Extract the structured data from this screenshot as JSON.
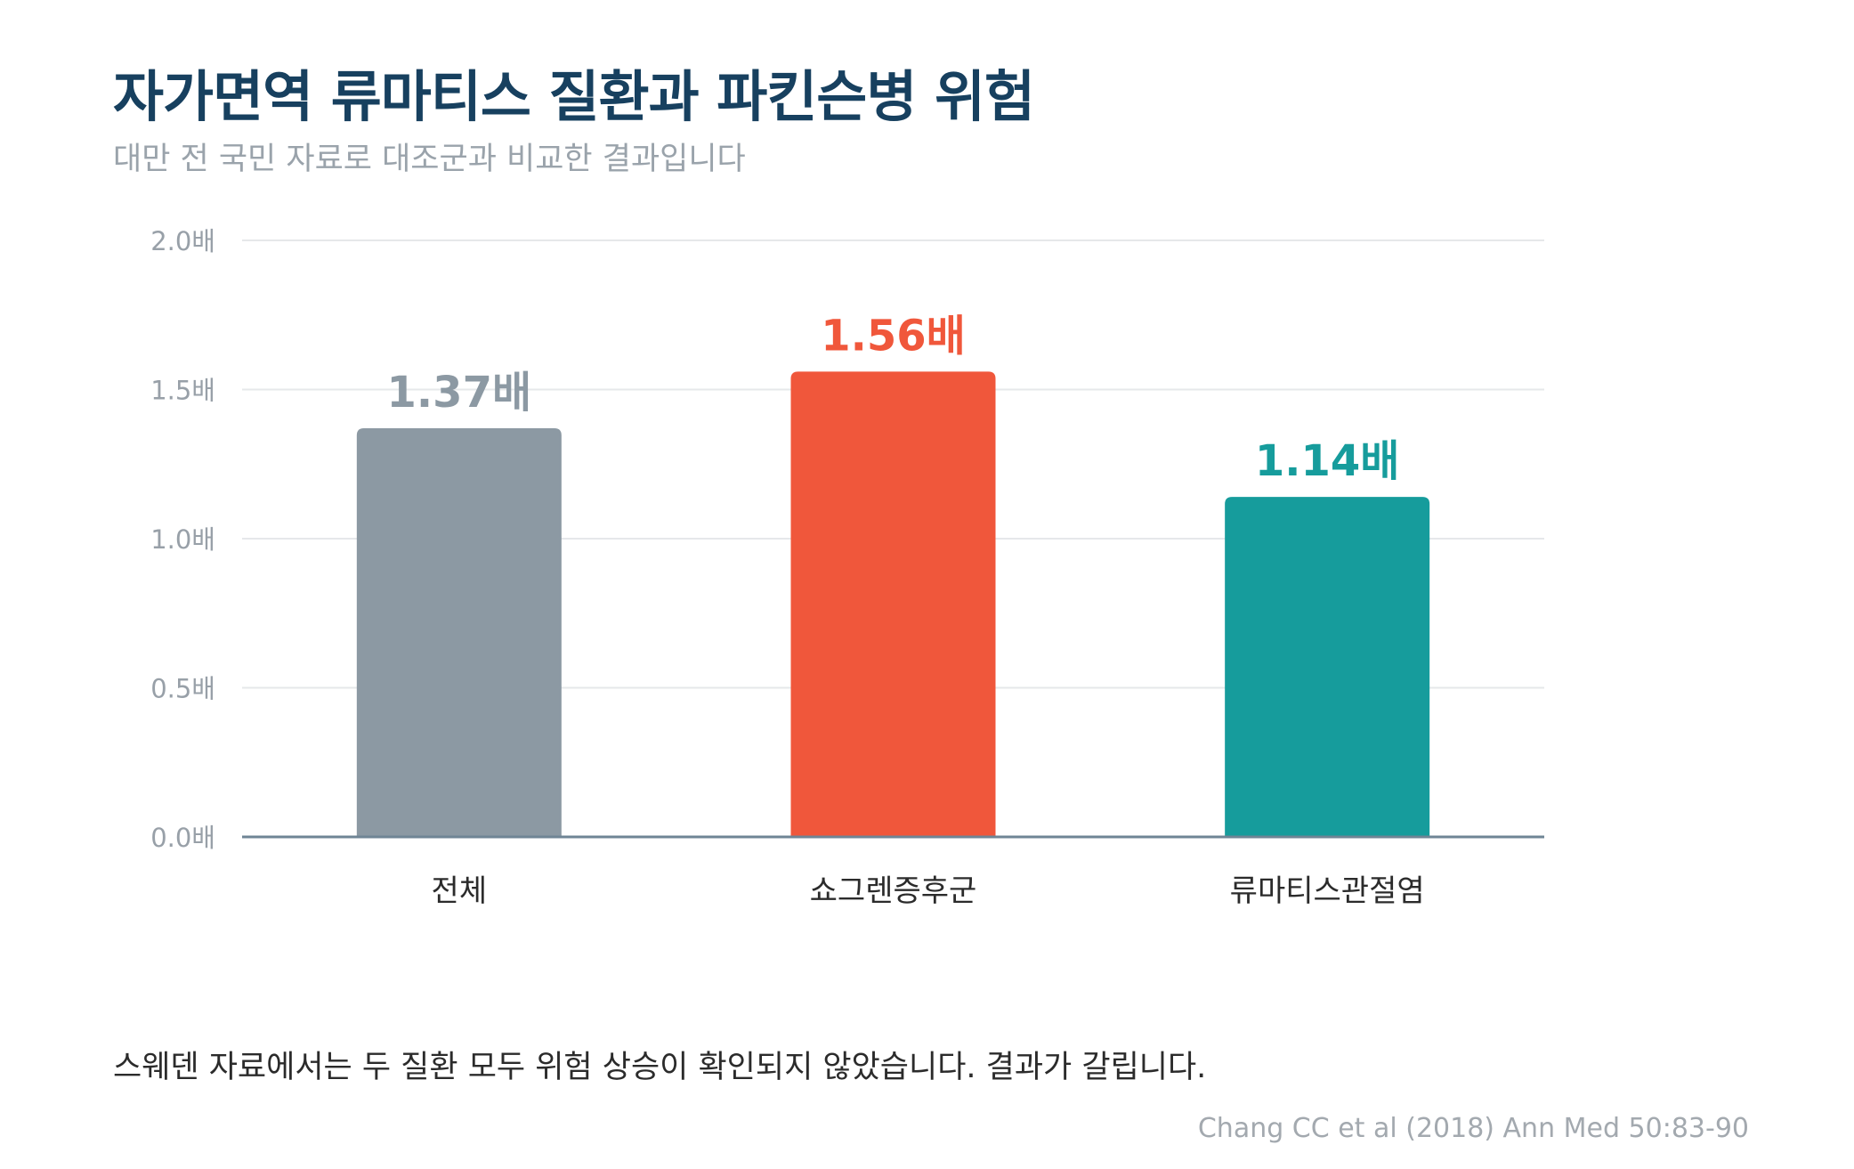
{
  "header": {
    "title": "자가면역 류마티스 질환과 파킨슨병 위험",
    "subtitle": "대만 전 국민 자료로 대조군과 비교한 결과입니다"
  },
  "chart_data": {
    "type": "bar",
    "categories": [
      "전체",
      "쇼그렌증후군",
      "류마티스관절염"
    ],
    "values": [
      1.37,
      1.56,
      1.14
    ],
    "value_labels": [
      "1.37배",
      "1.56배",
      "1.14배"
    ],
    "colors": [
      "#8c99a3",
      "#f0573b",
      "#169c9c"
    ],
    "ylim": [
      0,
      2.0
    ],
    "yticks": [
      0,
      0.5,
      1.0,
      1.5,
      2.0
    ],
    "ytick_labels": [
      "0.0배",
      "0.5배",
      "1.0배",
      "1.5배",
      "2.0배"
    ],
    "grid": true,
    "legend": "none"
  },
  "footer": {
    "note": "스웨덴 자료에서는 두 질환 모두 위험 상승이 확인되지 않았습니다. 결과가 갈립니다.",
    "source": "Chang CC et al (2018) Ann Med 50:83-90"
  }
}
